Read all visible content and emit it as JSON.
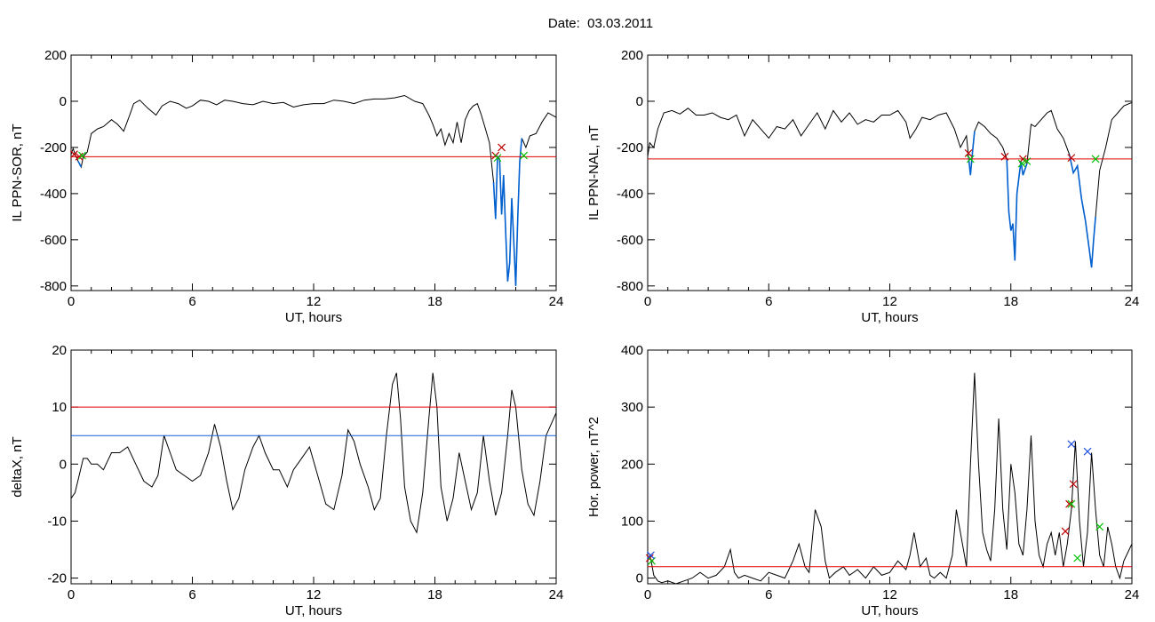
{
  "page": {
    "title": "Date:  03.03.2011"
  },
  "colors": {
    "threshold": "#e00000",
    "threshold2": "#1060d0",
    "highlight": "#0060d0",
    "marker_red": "#c00000",
    "marker_green": "#00c000",
    "marker_blue": "#2050e0",
    "line": "#000000"
  },
  "chart_data": [
    {
      "id": "p1",
      "type": "line",
      "xlabel": "UT, hours",
      "ylabel": "IL PPN-SOR, nT",
      "xlim": [
        0,
        24
      ],
      "ylim": [
        -820,
        200
      ],
      "xticks": [
        0,
        6,
        12,
        18,
        24
      ],
      "yticks": [
        200,
        0,
        -200,
        -400,
        -600,
        -800
      ],
      "series": [
        {
          "values_x": [
            0,
            0.1,
            0.2,
            0.35,
            0.5,
            0.6,
            0.8,
            1.0,
            1.3,
            1.6,
            2.0,
            2.3,
            2.6,
            2.9,
            3.1,
            3.4,
            3.8,
            4.2,
            4.5,
            4.9,
            5.3,
            5.7,
            6.0,
            6.4,
            6.8,
            7.2,
            7.6,
            8.0,
            8.5,
            9.0,
            9.5,
            10.0,
            10.5,
            11.0,
            11.5,
            12.0,
            12.5,
            13.0,
            13.5,
            14.0,
            14.5,
            15.0,
            15.5,
            16.0,
            16.5,
            17.0,
            17.4,
            17.7,
            17.9,
            18.1,
            18.3,
            18.5,
            18.7,
            18.9,
            19.1,
            19.3,
            19.5,
            19.7,
            19.9,
            20.1,
            20.3,
            20.5,
            20.7,
            20.9,
            21.0,
            21.1,
            21.2,
            21.3,
            21.4,
            21.5,
            21.6,
            21.7,
            21.8,
            21.9,
            22.0,
            22.1,
            22.2,
            22.3,
            22.5,
            22.7,
            23.0,
            23.3,
            23.6,
            24.0
          ],
          "values_y": [
            -230,
            -205,
            -230,
            -260,
            -285,
            -240,
            -220,
            -140,
            -120,
            -110,
            -80,
            -100,
            -130,
            -60,
            -10,
            5,
            -30,
            -60,
            -20,
            0,
            -10,
            -30,
            -20,
            5,
            0,
            -15,
            5,
            0,
            -10,
            -15,
            0,
            -10,
            -5,
            -25,
            -15,
            -10,
            -10,
            5,
            0,
            -10,
            5,
            10,
            10,
            15,
            25,
            0,
            -10,
            -60,
            -100,
            -150,
            -120,
            -190,
            -140,
            -180,
            -90,
            -180,
            -80,
            -40,
            -20,
            -10,
            -60,
            -120,
            -180,
            -350,
            -510,
            -240,
            -250,
            -490,
            -320,
            -560,
            -780,
            -700,
            -420,
            -600,
            -800,
            -500,
            -260,
            -160,
            -200,
            -150,
            -140,
            -90,
            -50,
            -70
          ]
        }
      ],
      "threshold_lines": [
        -240
      ],
      "highlight_ranges": [
        [
          0.3,
          0.55
        ],
        [
          20.9,
          22.3
        ]
      ],
      "markers": [
        {
          "x": 0.15,
          "y": -230,
          "color": "red"
        },
        {
          "x": 0.4,
          "y": -240,
          "color": "red"
        },
        {
          "x": 21.0,
          "y": -235,
          "color": "red"
        },
        {
          "x": 21.3,
          "y": -200,
          "color": "red"
        },
        {
          "x": 0.55,
          "y": -235,
          "color": "green"
        },
        {
          "x": 21.1,
          "y": -245,
          "color": "green"
        },
        {
          "x": 22.4,
          "y": -235,
          "color": "green"
        }
      ]
    },
    {
      "id": "p2",
      "type": "line",
      "xlabel": "UT, hours",
      "ylabel": "IL PPN-NAL, nT",
      "xlim": [
        0,
        24
      ],
      "ylim": [
        -820,
        200
      ],
      "xticks": [
        0,
        6,
        12,
        18,
        24
      ],
      "yticks": [
        200,
        0,
        -200,
        -400,
        -600,
        -800
      ],
      "series": [
        {
          "values_x": [
            0,
            0.1,
            0.3,
            0.5,
            0.8,
            1.2,
            1.6,
            2.0,
            2.4,
            2.8,
            3.2,
            3.6,
            4.0,
            4.4,
            4.8,
            5.2,
            5.6,
            6.0,
            6.4,
            6.8,
            7.2,
            7.6,
            8.0,
            8.4,
            8.8,
            9.2,
            9.6,
            10.0,
            10.4,
            10.8,
            11.2,
            11.6,
            12.0,
            12.4,
            12.8,
            13.0,
            13.3,
            13.6,
            14.0,
            14.4,
            14.8,
            15.2,
            15.5,
            15.8,
            15.9,
            16.0,
            16.1,
            16.2,
            16.4,
            16.7,
            17.0,
            17.3,
            17.6,
            17.8,
            17.9,
            18.0,
            18.1,
            18.2,
            18.3,
            18.5,
            18.6,
            18.8,
            19.0,
            19.2,
            19.5,
            19.8,
            20.0,
            20.3,
            20.6,
            20.9,
            21.1,
            21.3,
            21.5,
            21.7,
            21.9,
            22.0,
            22.1,
            22.2,
            22.4,
            22.7,
            23.0,
            23.3,
            23.6,
            24.0
          ],
          "values_y": [
            -240,
            -180,
            -200,
            -120,
            -50,
            -40,
            -55,
            -30,
            -60,
            -60,
            -50,
            -70,
            -80,
            -60,
            -150,
            -80,
            -120,
            -160,
            -110,
            -120,
            -80,
            -150,
            -100,
            -50,
            -120,
            -40,
            -90,
            -50,
            -100,
            -80,
            -90,
            -60,
            -60,
            -40,
            -90,
            -160,
            -120,
            -70,
            -80,
            -60,
            -50,
            -120,
            -200,
            -150,
            -240,
            -320,
            -220,
            -130,
            -90,
            -110,
            -140,
            -160,
            -200,
            -250,
            -480,
            -560,
            -530,
            -690,
            -400,
            -260,
            -320,
            -270,
            -100,
            -110,
            -80,
            -50,
            -40,
            -120,
            -160,
            -230,
            -310,
            -280,
            -420,
            -520,
            -650,
            -720,
            -600,
            -500,
            -300,
            -200,
            -80,
            -50,
            -20,
            -5
          ]
        }
      ],
      "threshold_lines": [
        -250
      ],
      "highlight_ranges": [
        [
          15.9,
          16.2
        ],
        [
          17.8,
          18.8
        ],
        [
          20.9,
          22.3
        ]
      ],
      "markers": [
        {
          "x": 15.9,
          "y": -225,
          "color": "red"
        },
        {
          "x": 17.7,
          "y": -240,
          "color": "red"
        },
        {
          "x": 18.6,
          "y": -250,
          "color": "red"
        },
        {
          "x": 21.0,
          "y": -245,
          "color": "red"
        },
        {
          "x": 16.0,
          "y": -250,
          "color": "green"
        },
        {
          "x": 18.55,
          "y": -270,
          "color": "green"
        },
        {
          "x": 18.8,
          "y": -260,
          "color": "green"
        },
        {
          "x": 22.2,
          "y": -250,
          "color": "green"
        }
      ]
    },
    {
      "id": "p3",
      "type": "line",
      "xlabel": "UT, hours",
      "ylabel": "deltaX, nT",
      "xlim": [
        0,
        24
      ],
      "ylim": [
        -21,
        20
      ],
      "xticks": [
        0,
        6,
        12,
        18,
        24
      ],
      "yticks": [
        20,
        10,
        0,
        -10,
        -20
      ],
      "series": [
        {
          "values_x": [
            0,
            0.2,
            0.4,
            0.6,
            0.8,
            1.0,
            1.3,
            1.6,
            2.0,
            2.4,
            2.8,
            3.2,
            3.6,
            4.0,
            4.3,
            4.6,
            4.9,
            5.2,
            5.6,
            6.0,
            6.4,
            6.8,
            7.1,
            7.4,
            7.7,
            8.0,
            8.3,
            8.6,
            9.0,
            9.3,
            9.6,
            10.0,
            10.3,
            10.7,
            11.0,
            11.4,
            11.8,
            12.2,
            12.6,
            13.0,
            13.4,
            13.7,
            14.0,
            14.3,
            14.7,
            15.0,
            15.3,
            15.6,
            15.9,
            16.1,
            16.3,
            16.5,
            16.8,
            17.1,
            17.4,
            17.7,
            17.9,
            18.1,
            18.3,
            18.6,
            18.9,
            19.2,
            19.5,
            19.8,
            20.1,
            20.4,
            20.7,
            21.0,
            21.3,
            21.6,
            21.8,
            22.0,
            22.3,
            22.6,
            22.9,
            23.2,
            23.5,
            24.0
          ],
          "values_y": [
            -6,
            -5,
            -2,
            1,
            1,
            0,
            0,
            -1,
            2,
            2,
            3,
            0,
            -3,
            -4,
            -2,
            5,
            2,
            -1,
            -2,
            -3,
            -2,
            2,
            7,
            3,
            -3,
            -8,
            -6,
            -1,
            3,
            5,
            2,
            -1,
            -1,
            -4,
            -1,
            1,
            3,
            -2,
            -7,
            -8,
            -2,
            6,
            4,
            0,
            -4,
            -8,
            -6,
            5,
            14,
            16,
            8,
            -4,
            -10,
            -12,
            -5,
            8,
            16,
            10,
            -4,
            -10,
            -6,
            2,
            -3,
            -8,
            -5,
            5,
            -3,
            -9,
            -5,
            5,
            13,
            10,
            -1,
            -7,
            -9,
            -3,
            5,
            9
          ]
        }
      ],
      "threshold_lines": [
        10
      ],
      "threshold_lines_blue": [
        5
      ],
      "highlight_ranges": [],
      "markers": []
    },
    {
      "id": "p4",
      "type": "line",
      "xlabel": "UT, hours",
      "ylabel": "Hor. power, nT^2",
      "xlim": [
        0,
        24
      ],
      "ylim": [
        -10,
        400
      ],
      "xticks": [
        0,
        6,
        12,
        18,
        24
      ],
      "yticks": [
        400,
        300,
        200,
        100,
        0
      ],
      "series": [
        {
          "values_x": [
            0,
            0.1,
            0.2,
            0.3,
            0.4,
            0.5,
            0.7,
            1.0,
            1.4,
            1.8,
            2.2,
            2.6,
            3.0,
            3.4,
            3.8,
            4.1,
            4.3,
            4.5,
            4.8,
            5.2,
            5.6,
            6.0,
            6.4,
            6.8,
            7.2,
            7.5,
            7.8,
            8.0,
            8.3,
            8.6,
            8.8,
            9.0,
            9.3,
            9.7,
            10.0,
            10.4,
            10.8,
            11.2,
            11.6,
            12.0,
            12.4,
            12.8,
            13.0,
            13.2,
            13.5,
            13.8,
            14.0,
            14.2,
            14.5,
            14.8,
            15.1,
            15.3,
            15.5,
            15.8,
            16.0,
            16.2,
            16.4,
            16.6,
            16.8,
            17.0,
            17.2,
            17.4,
            17.6,
            17.8,
            18.0,
            18.2,
            18.4,
            18.6,
            18.8,
            19.0,
            19.2,
            19.4,
            19.6,
            19.8,
            20.0,
            20.2,
            20.4,
            20.6,
            20.8,
            21.0,
            21.2,
            21.4,
            21.6,
            21.8,
            22.0,
            22.2,
            22.4,
            22.6,
            22.8,
            23.0,
            23.2,
            23.4,
            23.6,
            24.0
          ],
          "values_y": [
            30,
            40,
            25,
            5,
            0,
            -5,
            -8,
            -5,
            -10,
            -5,
            0,
            10,
            0,
            5,
            20,
            50,
            10,
            0,
            5,
            0,
            -5,
            10,
            5,
            0,
            30,
            60,
            20,
            10,
            120,
            90,
            30,
            0,
            10,
            20,
            5,
            15,
            0,
            20,
            5,
            10,
            30,
            15,
            40,
            80,
            20,
            35,
            5,
            0,
            10,
            0,
            40,
            120,
            80,
            20,
            200,
            360,
            200,
            80,
            50,
            30,
            120,
            280,
            120,
            50,
            200,
            150,
            60,
            40,
            120,
            250,
            100,
            40,
            20,
            60,
            80,
            40,
            80,
            20,
            60,
            120,
            240,
            100,
            20,
            80,
            220,
            120,
            40,
            20,
            90,
            60,
            20,
            0,
            30,
            60
          ]
        }
      ],
      "threshold_lines": [
        20
      ],
      "highlight_ranges": [],
      "markers": [
        {
          "x": 0.1,
          "y": 35,
          "color": "red"
        },
        {
          "x": 20.7,
          "y": 82,
          "color": "red"
        },
        {
          "x": 20.9,
          "y": 130,
          "color": "red"
        },
        {
          "x": 21.1,
          "y": 165,
          "color": "red"
        },
        {
          "x": 0.2,
          "y": 30,
          "color": "green"
        },
        {
          "x": 21.0,
          "y": 130,
          "color": "green"
        },
        {
          "x": 21.3,
          "y": 35,
          "color": "green"
        },
        {
          "x": 22.4,
          "y": 90,
          "color": "green"
        },
        {
          "x": 0.15,
          "y": 40,
          "color": "blue"
        },
        {
          "x": 21.0,
          "y": 235,
          "color": "blue"
        },
        {
          "x": 21.8,
          "y": 222,
          "color": "blue"
        }
      ]
    }
  ]
}
